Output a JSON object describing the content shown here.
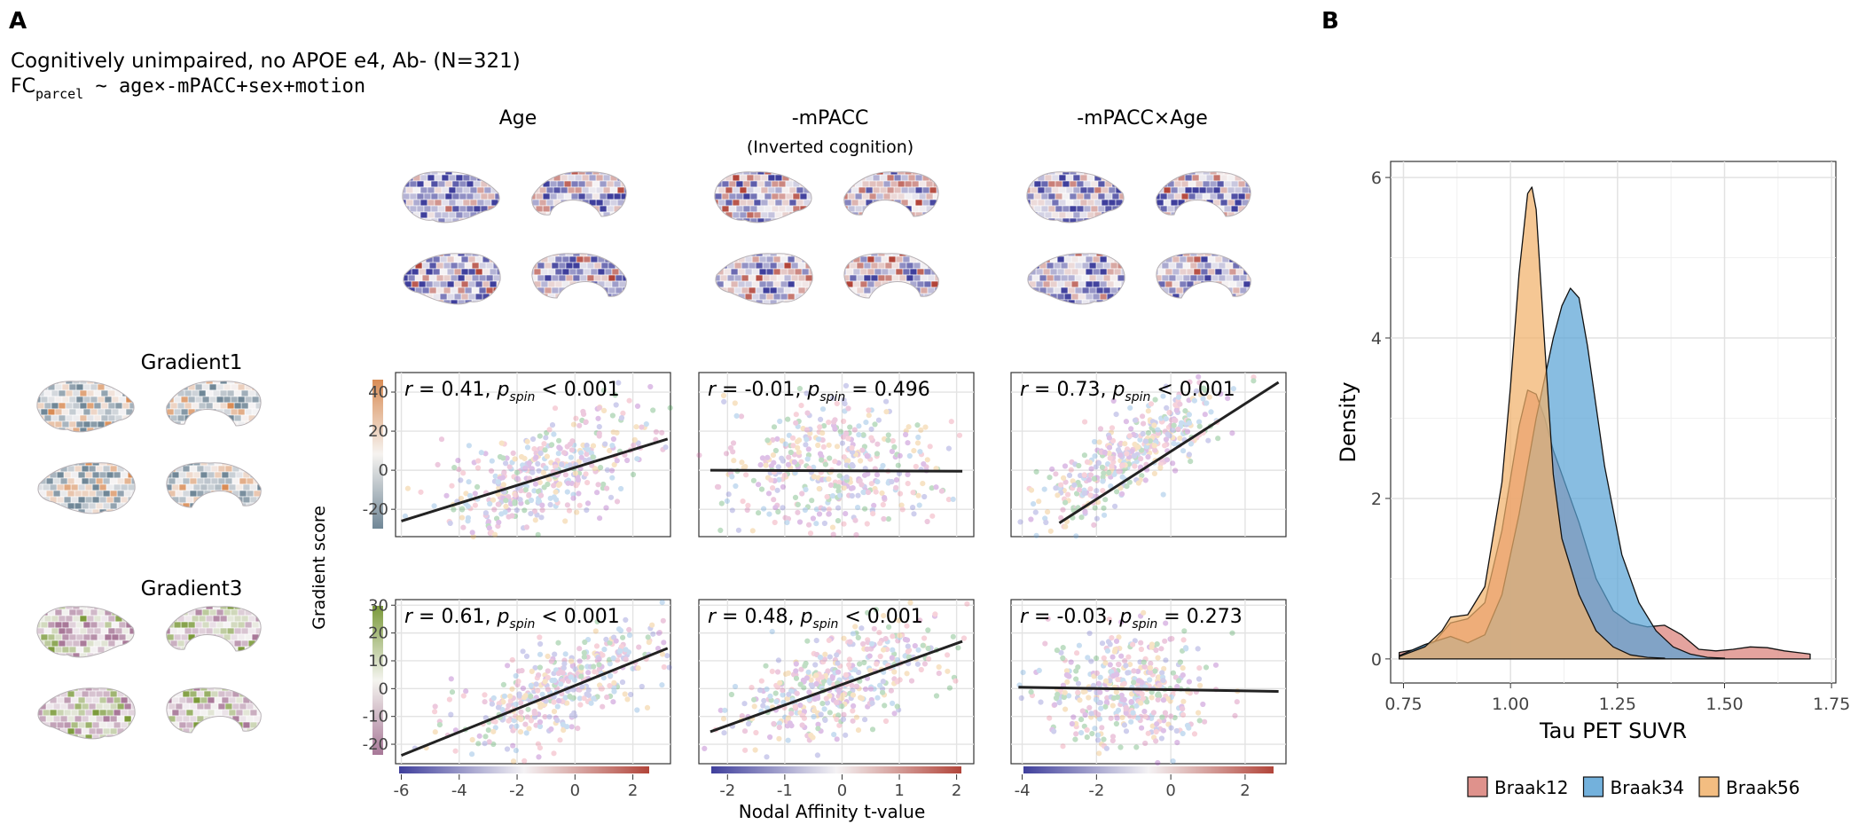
{
  "panels": {
    "a_label": "A",
    "b_label": "B"
  },
  "header": {
    "line1": "Cognitively unimpaired, no APOE e4, Ab- (N=321)",
    "line2_pre": "FC",
    "line2_sub": "parcel",
    "line2_post": " ~ age×-mPACC+sex+motion"
  },
  "columns": {
    "age": "Age",
    "mpacc": "-mPACC",
    "mpacc_sub": "(Inverted cognition)",
    "interaction": "-mPACC×Age"
  },
  "gradients": {
    "g1": "Gradient1",
    "g3": "Gradient3"
  },
  "axis_titles": {
    "y": "Gradient score",
    "x": "Nodal Affinity t-value"
  },
  "colors": {
    "g1_high": "#d98c55",
    "g1_low": "#708797",
    "g3_high": "#7b9a3a",
    "g3_low": "#a87898",
    "t_neg": "#3f3f9c",
    "t_pos": "#b2453a",
    "braak12": "#d97f78",
    "braak34": "#5aa3d6",
    "braak56": "#f1b26b",
    "regression": "#222222"
  },
  "chart_data": [
    {
      "type": "scatter",
      "row": "Gradient1",
      "column": "Age",
      "annotation": {
        "r": "0.41",
        "op": "<",
        "p": "0.001"
      },
      "x_ticks": [
        -6,
        -4,
        -2,
        0,
        2
      ],
      "y_ticks": [
        40,
        20,
        0,
        -20
      ],
      "xlim": [
        -6.2,
        3.3
      ],
      "ylim": [
        -34,
        50
      ],
      "fit": [
        [
          -6,
          -26
        ],
        [
          3.2,
          16
        ]
      ],
      "x_center": -1.0,
      "x_sd": 1.8,
      "slope": 4.6,
      "intercept": -2,
      "noise": 14
    },
    {
      "type": "scatter",
      "row": "Gradient1",
      "column": "-mPACC",
      "annotation": {
        "r": "-0.01",
        "op": "=",
        "p": "0.496"
      },
      "x_ticks": [
        -2,
        -1,
        0,
        1,
        2
      ],
      "y_ticks": [
        40,
        20,
        0,
        -20
      ],
      "xlim": [
        -2.5,
        2.3
      ],
      "ylim": [
        -34,
        50
      ],
      "fit": [
        [
          -2.3,
          0
        ],
        [
          2.1,
          -0.5
        ]
      ],
      "x_center": -0.2,
      "x_sd": 0.9,
      "slope": -0.1,
      "intercept": 0,
      "noise": 18
    },
    {
      "type": "scatter",
      "row": "Gradient1",
      "column": "-mPACC×Age",
      "annotation": {
        "r": "0.73",
        "op": "<",
        "p": "0.001"
      },
      "x_ticks": [
        -4,
        -2,
        0,
        2
      ],
      "y_ticks": [
        40,
        20,
        0,
        -20
      ],
      "xlim": [
        -4.3,
        3.1
      ],
      "ylim": [
        -34,
        50
      ],
      "fit": [
        [
          -3.0,
          -27
        ],
        [
          2.9,
          45
        ]
      ],
      "x_center": -1.0,
      "x_sd": 1.3,
      "slope": 12.2,
      "intercept": 9,
      "noise": 10
    },
    {
      "type": "scatter",
      "row": "Gradient3",
      "column": "Age",
      "annotation": {
        "r": "0.61",
        "op": "<",
        "p": "0.001"
      },
      "x_ticks": [
        -6,
        -4,
        -2,
        0,
        2
      ],
      "y_ticks": [
        30,
        20,
        10,
        0,
        -10,
        -20
      ],
      "xlim": [
        -6.2,
        3.3
      ],
      "ylim": [
        -27,
        32
      ],
      "fit": [
        [
          -6,
          -24
        ],
        [
          3.2,
          14.5
        ]
      ],
      "x_center": -0.5,
      "x_sd": 1.8,
      "slope": 4.2,
      "intercept": 1,
      "noise": 8
    },
    {
      "type": "scatter",
      "row": "Gradient3",
      "column": "-mPACC",
      "annotation": {
        "r": "0.48",
        "op": "<",
        "p": "0.001"
      },
      "x_ticks": [
        -2,
        -1,
        0,
        1,
        2
      ],
      "y_ticks": [
        30,
        20,
        10,
        0,
        -10,
        -20
      ],
      "xlim": [
        -2.5,
        2.3
      ],
      "ylim": [
        -27,
        32
      ],
      "fit": [
        [
          -2.3,
          -15.5
        ],
        [
          2.1,
          17
        ]
      ],
      "x_center": -0.1,
      "x_sd": 0.9,
      "slope": 7.4,
      "intercept": 1.5,
      "noise": 9
    },
    {
      "type": "scatter",
      "row": "Gradient3",
      "column": "-mPACC×Age",
      "annotation": {
        "r": "-0.03",
        "op": "=",
        "p": "0.273"
      },
      "x_ticks": [
        -4,
        -2,
        0,
        2
      ],
      "y_ticks": [
        30,
        20,
        10,
        0,
        -10,
        -20
      ],
      "xlim": [
        -4.3,
        3.1
      ],
      "ylim": [
        -27,
        32
      ],
      "fit": [
        [
          -4.1,
          0.5
        ],
        [
          2.9,
          -1
        ]
      ],
      "x_center": -1.1,
      "x_sd": 1.1,
      "slope": -0.2,
      "intercept": 0,
      "noise": 10
    },
    {
      "type": "area",
      "subtype": "density",
      "panel": "B",
      "xlabel": "Tau PET SUVR",
      "ylabel": "Density",
      "xlim": [
        0.72,
        1.76
      ],
      "ylim": [
        -0.3,
        6.2
      ],
      "x_ticks": [
        "0.75",
        "1.00",
        "1.25",
        "1.50",
        "1.75"
      ],
      "y_ticks": [
        0,
        2,
        4,
        6
      ],
      "grid": true,
      "legend_position": "bottom",
      "series": [
        {
          "name": "Braak12",
          "x": [
            0.74,
            0.78,
            0.82,
            0.86,
            0.9,
            0.94,
            0.98,
            1.02,
            1.04,
            1.06,
            1.08,
            1.1,
            1.12,
            1.16,
            1.2,
            1.24,
            1.28,
            1.32,
            1.36,
            1.4,
            1.44,
            1.48,
            1.52,
            1.56,
            1.6,
            1.64,
            1.7
          ],
          "y": [
            0.08,
            0.12,
            0.2,
            0.45,
            0.5,
            0.7,
            1.6,
            2.9,
            3.35,
            3.3,
            3.0,
            2.6,
            2.3,
            1.7,
            1.0,
            0.6,
            0.45,
            0.4,
            0.42,
            0.3,
            0.12,
            0.1,
            0.12,
            0.15,
            0.14,
            0.1,
            0.06
          ]
        },
        {
          "name": "Braak34",
          "x": [
            0.74,
            0.8,
            0.86,
            0.9,
            0.94,
            0.98,
            1.02,
            1.06,
            1.1,
            1.12,
            1.14,
            1.16,
            1.18,
            1.22,
            1.26,
            1.3,
            1.34,
            1.38,
            1.42,
            1.46,
            1.5
          ],
          "y": [
            0.04,
            0.18,
            0.28,
            0.2,
            0.3,
            0.8,
            1.8,
            3.0,
            4.0,
            4.4,
            4.62,
            4.5,
            3.9,
            2.4,
            1.3,
            0.7,
            0.35,
            0.15,
            0.06,
            0.02,
            0.01
          ]
        },
        {
          "name": "Braak56",
          "x": [
            0.74,
            0.8,
            0.84,
            0.86,
            0.9,
            0.94,
            0.98,
            1.0,
            1.02,
            1.04,
            1.05,
            1.06,
            1.08,
            1.1,
            1.12,
            1.16,
            1.2,
            1.24,
            1.28,
            1.32,
            1.36
          ],
          "y": [
            0.03,
            0.15,
            0.35,
            0.52,
            0.55,
            0.9,
            2.2,
            3.4,
            4.8,
            5.8,
            5.88,
            5.6,
            3.9,
            2.3,
            1.5,
            0.8,
            0.35,
            0.15,
            0.05,
            0.02,
            0.01
          ]
        }
      ]
    }
  ]
}
